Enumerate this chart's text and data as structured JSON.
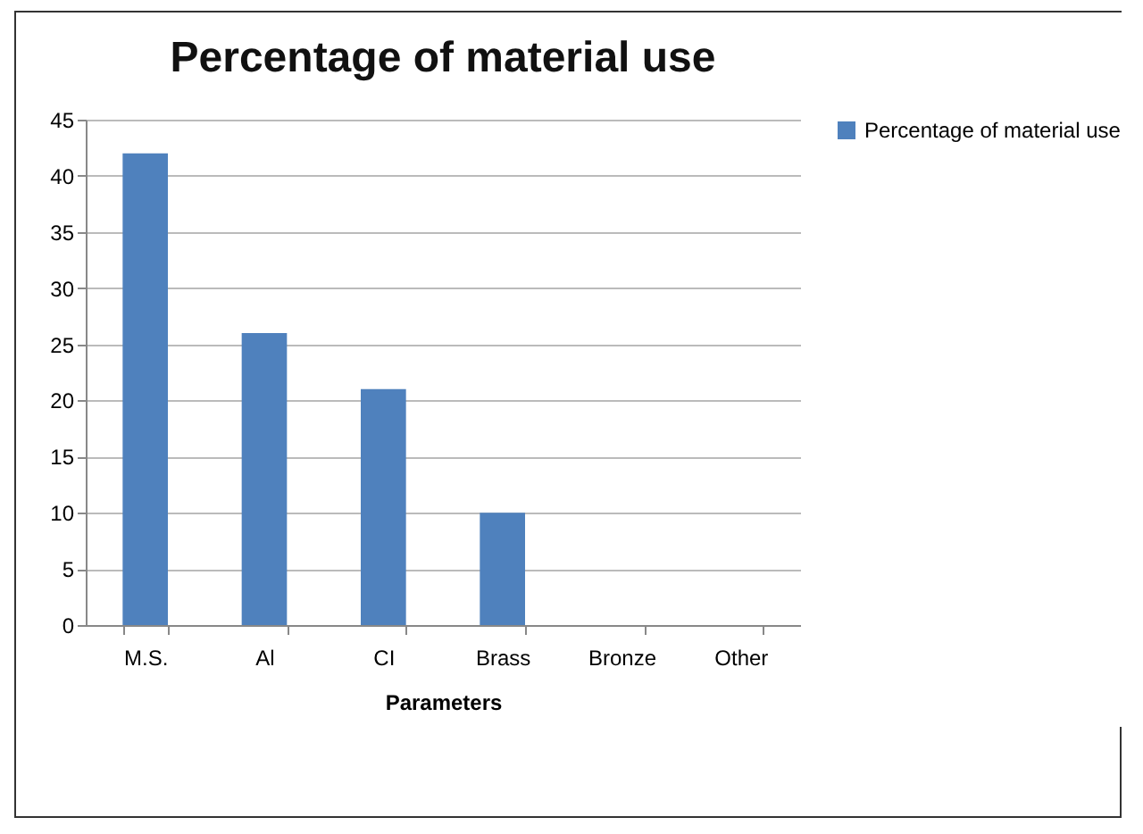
{
  "chart_data": {
    "type": "bar",
    "title": "Percentage of material use",
    "xlabel": "Parameters",
    "categories": [
      "M.S.",
      "Al",
      "CI",
      "Brass",
      "Bronze",
      "Other"
    ],
    "series": [
      {
        "name": "Percentage of material use",
        "color": "#4f81bd",
        "values": [
          42,
          26,
          21,
          10,
          0,
          0
        ]
      }
    ],
    "ylim": [
      0,
      45
    ],
    "yticks": [
      0,
      5,
      10,
      15,
      20,
      25,
      30,
      35,
      40,
      45
    ],
    "grid": "y",
    "legend": "right"
  }
}
